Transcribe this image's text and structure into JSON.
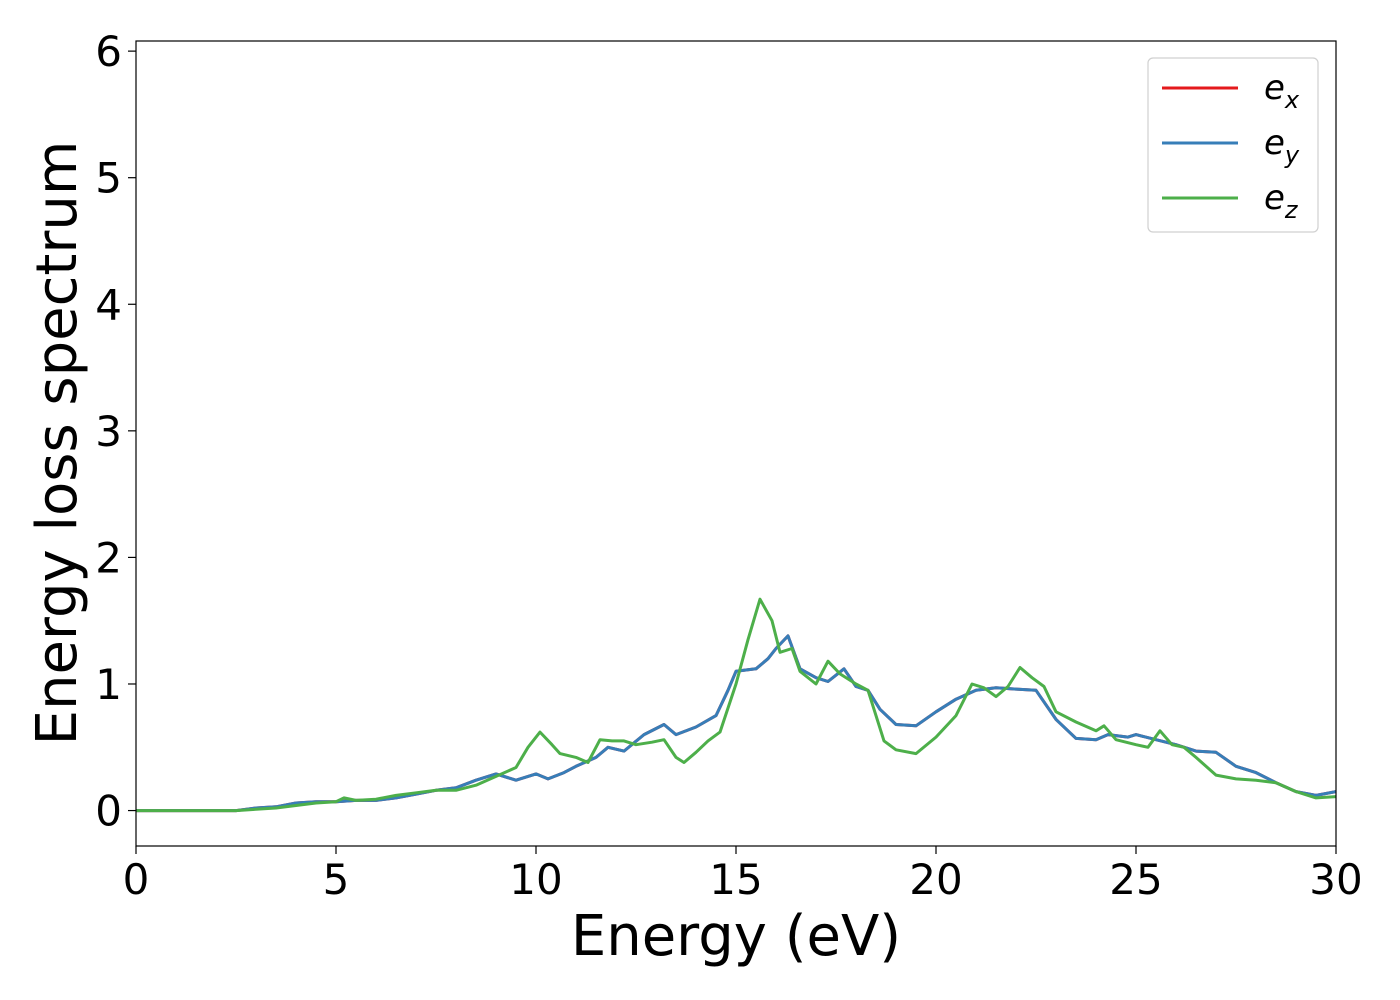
{
  "chart_data": {
    "type": "line",
    "xlabel": "Energy (eV)",
    "ylabel": "Energy loss spectrum",
    "xlim": [
      0,
      30
    ],
    "ylim": [
      -0.28,
      6.08
    ],
    "xticks": [
      0,
      5,
      10,
      15,
      20,
      25,
      30
    ],
    "yticks": [
      0,
      1,
      2,
      3,
      4,
      5,
      6
    ],
    "xtick_labels": [
      "0",
      "5",
      "10",
      "15",
      "20",
      "25",
      "30"
    ],
    "ytick_labels": [
      "0",
      "1",
      "2",
      "3",
      "4",
      "5",
      "6"
    ],
    "grid": false,
    "legend_position": "top-right",
    "series": [
      {
        "name": "e",
        "subscript": "x",
        "color": "#e41a1c",
        "x": [
          0,
          2.5,
          3.0,
          3.5,
          4.0,
          4.5,
          5.0,
          5.5,
          6.0,
          6.5,
          7.0,
          7.5,
          8.0,
          8.5,
          9.0,
          9.5,
          10.0,
          10.3,
          10.7,
          11.0,
          11.5,
          11.8,
          12.2,
          12.7,
          13.2,
          13.5,
          14.0,
          14.5,
          14.8,
          15.0,
          15.5,
          15.8,
          16.0,
          16.3,
          16.6,
          17.0,
          17.3,
          17.7,
          18.0,
          18.3,
          18.6,
          19.0,
          19.5,
          20.0,
          20.5,
          21.0,
          21.5,
          22.0,
          22.5,
          23.0,
          23.5,
          24.0,
          24.3,
          24.8,
          25.0,
          25.5,
          26.0,
          26.5,
          27.0,
          27.5,
          28.0,
          28.5,
          29.0,
          29.5,
          30.0
        ],
        "y": [
          0.0,
          0.0,
          0.02,
          0.03,
          0.06,
          0.07,
          0.07,
          0.08,
          0.08,
          0.1,
          0.13,
          0.16,
          0.18,
          0.24,
          0.29,
          0.24,
          0.29,
          0.25,
          0.3,
          0.35,
          0.42,
          0.5,
          0.47,
          0.6,
          0.68,
          0.6,
          0.66,
          0.75,
          0.95,
          1.1,
          1.12,
          1.2,
          1.28,
          1.38,
          1.12,
          1.05,
          1.02,
          1.12,
          0.98,
          0.95,
          0.8,
          0.68,
          0.67,
          0.78,
          0.88,
          0.95,
          0.97,
          0.96,
          0.95,
          0.72,
          0.57,
          0.56,
          0.6,
          0.58,
          0.6,
          0.56,
          0.52,
          0.47,
          0.46,
          0.35,
          0.3,
          0.22,
          0.15,
          0.12,
          0.15
        ]
      },
      {
        "name": "e",
        "subscript": "y",
        "color": "#377eb8",
        "x": [
          0,
          2.5,
          3.0,
          3.5,
          4.0,
          4.5,
          5.0,
          5.5,
          6.0,
          6.5,
          7.0,
          7.5,
          8.0,
          8.5,
          9.0,
          9.5,
          10.0,
          10.3,
          10.7,
          11.0,
          11.5,
          11.8,
          12.2,
          12.7,
          13.2,
          13.5,
          14.0,
          14.5,
          14.8,
          15.0,
          15.5,
          15.8,
          16.0,
          16.3,
          16.6,
          17.0,
          17.3,
          17.7,
          18.0,
          18.3,
          18.6,
          19.0,
          19.5,
          20.0,
          20.5,
          21.0,
          21.5,
          22.0,
          22.5,
          23.0,
          23.5,
          24.0,
          24.3,
          24.8,
          25.0,
          25.5,
          26.0,
          26.5,
          27.0,
          27.5,
          28.0,
          28.5,
          29.0,
          29.5,
          30.0
        ],
        "y": [
          0.0,
          0.0,
          0.02,
          0.03,
          0.06,
          0.07,
          0.07,
          0.08,
          0.08,
          0.1,
          0.13,
          0.16,
          0.18,
          0.24,
          0.29,
          0.24,
          0.29,
          0.25,
          0.3,
          0.35,
          0.42,
          0.5,
          0.47,
          0.6,
          0.68,
          0.6,
          0.66,
          0.75,
          0.95,
          1.1,
          1.12,
          1.2,
          1.28,
          1.38,
          1.12,
          1.05,
          1.02,
          1.12,
          0.98,
          0.95,
          0.8,
          0.68,
          0.67,
          0.78,
          0.88,
          0.95,
          0.97,
          0.96,
          0.95,
          0.72,
          0.57,
          0.56,
          0.6,
          0.58,
          0.6,
          0.56,
          0.52,
          0.47,
          0.46,
          0.35,
          0.3,
          0.22,
          0.15,
          0.12,
          0.15
        ]
      },
      {
        "name": "e",
        "subscript": "z",
        "color": "#4daf4a",
        "x": [
          0,
          2.5,
          3.0,
          3.5,
          4.0,
          4.5,
          5.0,
          5.2,
          5.5,
          6.0,
          6.5,
          7.0,
          7.5,
          8.0,
          8.5,
          9.0,
          9.5,
          9.8,
          10.1,
          10.4,
          10.6,
          11.0,
          11.3,
          11.6,
          11.9,
          12.2,
          12.5,
          12.9,
          13.2,
          13.5,
          13.7,
          14.0,
          14.3,
          14.6,
          15.0,
          15.3,
          15.6,
          15.9,
          16.1,
          16.4,
          16.6,
          17.0,
          17.3,
          17.6,
          18.0,
          18.3,
          18.7,
          19.0,
          19.5,
          20.0,
          20.5,
          20.9,
          21.2,
          21.5,
          21.8,
          22.1,
          22.4,
          22.7,
          23.0,
          23.5,
          24.0,
          24.2,
          24.5,
          25.0,
          25.3,
          25.6,
          25.9,
          26.2,
          26.5,
          27.0,
          27.5,
          28.0,
          28.5,
          29.0,
          29.5,
          30.0
        ],
        "y": [
          0.0,
          0.0,
          0.01,
          0.02,
          0.04,
          0.06,
          0.07,
          0.1,
          0.08,
          0.09,
          0.12,
          0.14,
          0.16,
          0.16,
          0.2,
          0.27,
          0.34,
          0.5,
          0.62,
          0.52,
          0.45,
          0.42,
          0.38,
          0.56,
          0.55,
          0.55,
          0.52,
          0.54,
          0.56,
          0.42,
          0.38,
          0.46,
          0.55,
          0.62,
          1.0,
          1.35,
          1.67,
          1.5,
          1.25,
          1.28,
          1.1,
          1.0,
          1.18,
          1.08,
          1.0,
          0.95,
          0.55,
          0.48,
          0.45,
          0.58,
          0.75,
          1.0,
          0.97,
          0.9,
          0.98,
          1.13,
          1.05,
          0.98,
          0.78,
          0.7,
          0.63,
          0.67,
          0.56,
          0.52,
          0.5,
          0.63,
          0.52,
          0.5,
          0.42,
          0.28,
          0.25,
          0.24,
          0.22,
          0.15,
          0.1,
          0.11
        ]
      }
    ]
  }
}
